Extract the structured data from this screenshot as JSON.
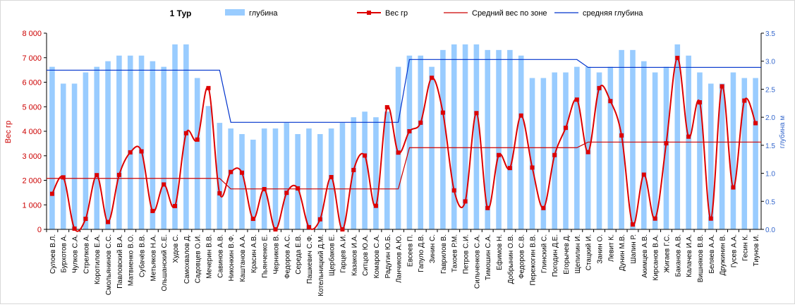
{
  "chart_data": {
    "type": "bar",
    "title": "1 Тур",
    "ylabel_left": "Вес гр",
    "ylabel_right": "глубина м",
    "ylim_left": [
      0,
      8000
    ],
    "ylim_right": [
      0,
      3.5
    ],
    "yticks_left": [
      "0",
      "1 000",
      "2 000",
      "3 000",
      "4 000",
      "5 000",
      "6 000",
      "7 000",
      "8 000"
    ],
    "yticks_right": [
      "0.0",
      "0.5",
      "1.0",
      "1.5",
      "2.0",
      "2.5",
      "3.0",
      "3.5"
    ],
    "legend": [
      {
        "name": "глубина",
        "kind": "bar"
      },
      {
        "name": "Вес гр",
        "kind": "line-marker"
      },
      {
        "name": "Средний вес по зоне",
        "kind": "line"
      },
      {
        "name": "средняя глубина",
        "kind": "line"
      }
    ],
    "categories": [
      "Сулоев В.Л.",
      "Бурхотов А.",
      "Чулков С.А.",
      "Стрелков А.",
      "Коротилов Е.А.",
      "Смольянинов С.С.",
      "Павловский В.А.",
      "Матвиенко В.О.",
      "Субачёв В.В.",
      "Метьяков Н.А.",
      "Ольшанский С.Е.",
      "Худов С.",
      "Самохвалов Д.",
      "Садовцев О.И.",
      "Мечерин В.В.",
      "Савинов А.В.",
      "Никонкин В.Ф.",
      "Каштанов А.А.",
      "Красин А.В.",
      "Пьянченко Е.",
      "Черников В.",
      "Федоров А.С.",
      "Середа Е.В.",
      "Пашкевич С.Ф.",
      "Котельницкий Д.М.",
      "Щербаков Е.",
      "Гарцев А.И.",
      "Казаков И.А.",
      "Ситцов Ю.А.",
      "Комаров С.А.",
      "Радугин Ю.Б.",
      "Ланчиков А.Ю.",
      "Евсеев П.",
      "Гапуло Д.В.",
      "Зинин С.",
      "Гаврилов В.",
      "Тахоев Р.М.",
      "Петров С.И.",
      "Сильченков С.А.",
      "Тимошин С.А.",
      "Ефимов Н.",
      "Добрынин О.В.",
      "Федоров С.В.",
      "Пережогин В.В.",
      "Глинский С.",
      "Погодин Д.Е.",
      "Егорычев Д.",
      "Щепилин И.",
      "Стацкий И.",
      "Занин О.",
      "Левит К.",
      "Дунин М.В.",
      "Шапин Р.",
      "Акимцев А.В.",
      "Кирсанов В.А.",
      "Жигаев Г.С.",
      "Баканов А.В.",
      "Калачев И.А.",
      "Вишняков В.В.",
      "Беляев А.А.",
      "Дружинин В.",
      "Гусев А.А.",
      "Гесин К.",
      "Тиунов И."
    ],
    "series": [
      {
        "name": "глубина",
        "axis": "right",
        "type": "bar",
        "color": "#99ccff",
        "values": [
          2.9,
          2.6,
          2.6,
          2.8,
          2.9,
          3.0,
          3.1,
          3.1,
          3.1,
          3.0,
          2.9,
          3.3,
          3.3,
          2.7,
          2.2,
          1.9,
          1.8,
          1.7,
          1.6,
          1.8,
          1.8,
          1.9,
          1.7,
          1.8,
          1.7,
          1.8,
          1.9,
          2.0,
          2.1,
          2.0,
          2.1,
          2.9,
          3.1,
          3.1,
          2.9,
          3.2,
          3.3,
          3.3,
          3.3,
          3.2,
          3.2,
          3.2,
          3.1,
          2.7,
          2.7,
          2.8,
          2.8,
          2.9,
          2.9,
          2.8,
          2.9,
          3.2,
          3.2,
          3.0,
          2.8,
          2.9,
          3.3,
          3.1,
          2.8,
          2.6,
          2.6,
          2.8,
          2.7,
          2.7
        ]
      },
      {
        "name": "Вес гр",
        "axis": "left",
        "type": "line",
        "color": "#dd0000",
        "values": [
          1450,
          2120,
          30,
          430,
          2210,
          300,
          2220,
          3140,
          3180,
          750,
          1830,
          950,
          3920,
          3660,
          5760,
          1470,
          2340,
          2310,
          430,
          1640,
          0,
          1490,
          1670,
          90,
          410,
          2130,
          0,
          2420,
          3010,
          960,
          4980,
          3130,
          4000,
          4350,
          6180,
          4760,
          1590,
          1140,
          4740,
          870,
          3030,
          2500,
          4640,
          2520,
          870,
          3030,
          4140,
          5290,
          3150,
          5760,
          5230,
          3830,
          200,
          2230,
          440,
          3510,
          6990,
          3780,
          5180,
          440,
          5830,
          1710,
          5250,
          4330
        ]
      },
      {
        "name": "Средний вес по зоне",
        "axis": "left",
        "type": "line",
        "color": "#cc0000",
        "step": true,
        "segments": [
          {
            "from": 0,
            "to": 15,
            "value": 2080
          },
          {
            "from": 16,
            "to": 31,
            "value": 1650
          },
          {
            "from": 32,
            "to": 47,
            "value": 3330
          },
          {
            "from": 48,
            "to": 63,
            "value": 3560
          }
        ]
      },
      {
        "name": "средняя глубина",
        "axis": "right",
        "type": "line",
        "color": "#0033cc",
        "step": true,
        "segments": [
          {
            "from": 0,
            "to": 15,
            "value": 2.84
          },
          {
            "from": 16,
            "to": 31,
            "value": 1.91
          },
          {
            "from": 32,
            "to": 47,
            "value": 3.03
          },
          {
            "from": 48,
            "to": 63,
            "value": 2.89
          }
        ]
      }
    ],
    "grid": false,
    "legend_position": "top"
  }
}
